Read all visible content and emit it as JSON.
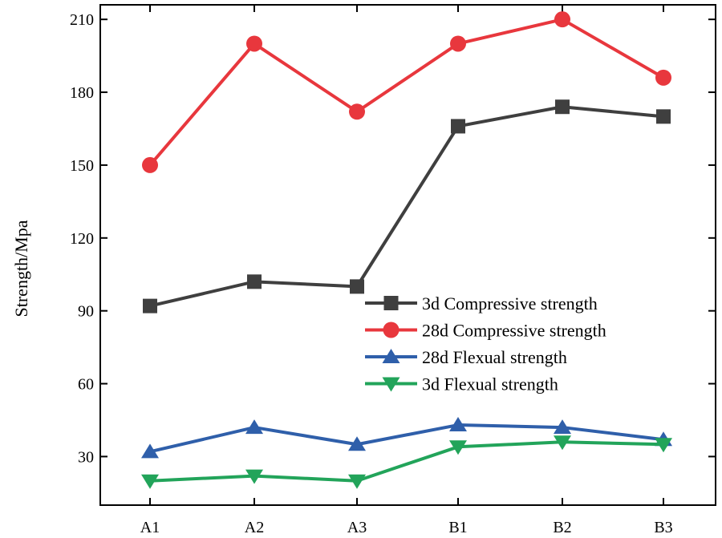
{
  "chart_data": {
    "type": "line",
    "title": "",
    "xlabel": "",
    "ylabel": "Strength/Mpa",
    "categories": [
      "A1",
      "A2",
      "A3",
      "B1",
      "B2",
      "B3"
    ],
    "ylim": [
      10,
      216
    ],
    "yticks": [
      30,
      60,
      90,
      120,
      150,
      180,
      210
    ],
    "grid": false,
    "legend_position": "center-right",
    "series": [
      {
        "name": "3d Compressive strength",
        "color": "#3f3f3f",
        "marker": "square",
        "values": [
          92,
          102,
          100,
          166,
          174,
          170
        ]
      },
      {
        "name": "28d Compressive strength",
        "color": "#e8373d",
        "marker": "circle",
        "values": [
          150,
          200,
          172,
          200,
          210,
          186
        ]
      },
      {
        "name": "28d Flexual strength",
        "color": "#2f5faa",
        "marker": "triangle-up",
        "values": [
          32,
          42,
          35,
          43,
          42,
          37
        ]
      },
      {
        "name": "3d Flexual strength",
        "color": "#22a45a",
        "marker": "triangle-down",
        "values": [
          20,
          22,
          20,
          34,
          36,
          35
        ]
      }
    ]
  }
}
